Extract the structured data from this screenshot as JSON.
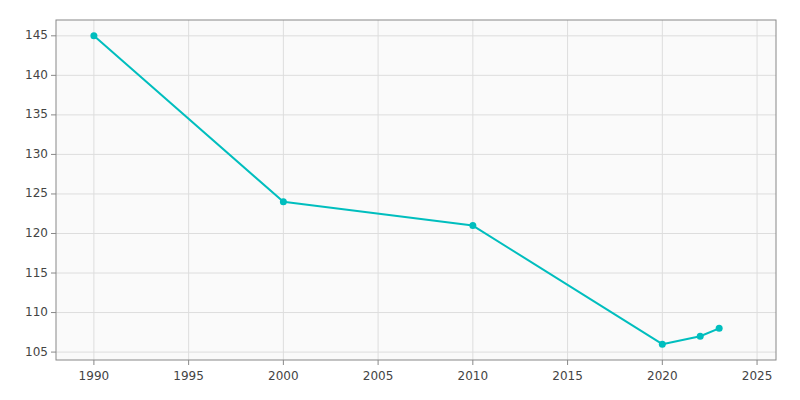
{
  "chart_data": {
    "type": "line",
    "x": [
      1990,
      2000,
      2010,
      2020,
      2022,
      2023
    ],
    "values": [
      145,
      124,
      121,
      106,
      107,
      108
    ],
    "color": "#00BEBE",
    "marker": "circle",
    "xlim": [
      1988,
      2026
    ],
    "ylim": [
      104,
      147
    ],
    "xticks": [
      1990,
      1995,
      2000,
      2005,
      2010,
      2015,
      2020,
      2025
    ],
    "yticks": [
      105,
      110,
      115,
      120,
      125,
      130,
      135,
      140,
      145
    ],
    "grid": true
  }
}
